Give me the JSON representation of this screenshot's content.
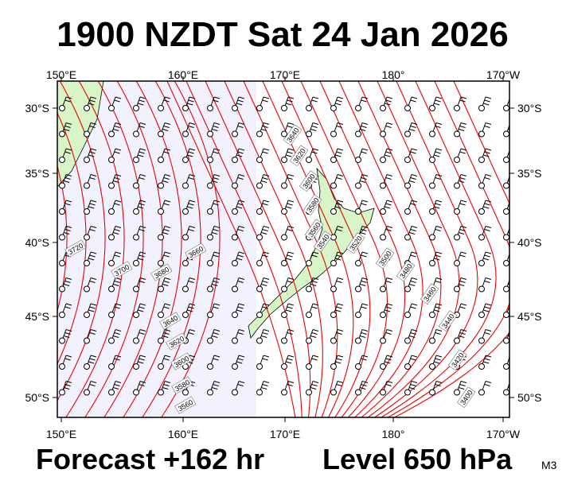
{
  "title": "1900 NZDT Sat 24 Jan 2026",
  "footer": {
    "forecast": "Forecast +162 hr",
    "level": "Level 650 hPa",
    "code": "M3"
  },
  "axes": {
    "lon_labels": [
      "150°E",
      "160°E",
      "170°E",
      "180°",
      "170°W"
    ],
    "lat_labels": [
      "30°S",
      "35°S",
      "40°S",
      "45°S",
      "50°S"
    ]
  },
  "contour_labels": [
    "3720",
    "3700",
    "3680",
    "3660",
    "3640",
    "3620",
    "3600",
    "3580",
    "3560",
    "3640",
    "3620",
    "3600",
    "3580",
    "3560",
    "3540",
    "3520",
    "3500",
    "3480",
    "3460",
    "3440",
    "3420",
    "3400"
  ]
}
